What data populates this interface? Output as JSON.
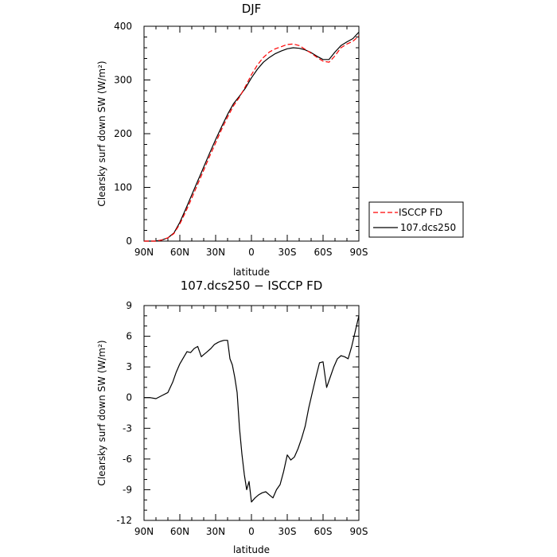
{
  "chart_data": [
    {
      "type": "line",
      "title": "DJF",
      "xlabel": "latitude",
      "ylabel": "Clearsky surf down SW (W/m²)",
      "x_tick_labels": [
        "90N",
        "60N",
        "30N",
        "0",
        "30S",
        "60S",
        "90S"
      ],
      "x_ticks": [
        -90,
        -60,
        -30,
        0,
        30,
        60,
        90
      ],
      "xlim": [
        -90,
        90
      ],
      "y_ticks": [
        0,
        100,
        200,
        300,
        400
      ],
      "ylim": [
        0,
        400
      ],
      "legend": {
        "placement": "outside-right"
      },
      "series": [
        {
          "name": "ISCCP FD",
          "color": "#ff0000",
          "dash": true,
          "x": [
            -90,
            -80,
            -75,
            -70,
            -65,
            -60,
            -55,
            -50,
            -45,
            -40,
            -35,
            -30,
            -25,
            -20,
            -15,
            -10,
            -5,
            0,
            5,
            10,
            15,
            20,
            25,
            30,
            35,
            40,
            45,
            50,
            55,
            60,
            65,
            70,
            75,
            80,
            85,
            90
          ],
          "y": [
            0,
            0,
            2,
            6,
            14,
            32,
            55,
            80,
            106,
            132,
            158,
            183,
            208,
            231,
            252,
            268,
            288,
            310,
            328,
            342,
            352,
            358,
            362,
            366,
            367,
            364,
            357,
            350,
            342,
            335,
            333,
            345,
            360,
            367,
            372,
            382
          ]
        },
        {
          "name": "107.dcs250",
          "color": "#000000",
          "dash": false,
          "x": [
            -90,
            -80,
            -75,
            -70,
            -65,
            -60,
            -55,
            -50,
            -45,
            -40,
            -35,
            -30,
            -25,
            -20,
            -15,
            -10,
            -5,
            0,
            5,
            10,
            15,
            20,
            25,
            30,
            35,
            40,
            45,
            50,
            55,
            60,
            65,
            70,
            75,
            80,
            85,
            90
          ],
          "y": [
            0,
            0,
            2,
            6,
            15,
            35,
            60,
            86,
            112,
            138,
            164,
            189,
            213,
            236,
            256,
            270,
            285,
            304,
            320,
            333,
            342,
            349,
            354,
            358,
            360,
            359,
            356,
            351,
            344,
            338,
            338,
            352,
            364,
            371,
            377,
            389
          ]
        }
      ]
    },
    {
      "type": "line",
      "title": "107.dcs250 − ISCCP FD",
      "xlabel": "latitude",
      "ylabel": "Clearsky surf down SW (W/m²)",
      "x_tick_labels": [
        "90N",
        "60N",
        "30N",
        "0",
        "30S",
        "60S",
        "90S"
      ],
      "x_ticks": [
        -90,
        -60,
        -30,
        0,
        30,
        60,
        90
      ],
      "xlim": [
        -90,
        90
      ],
      "y_ticks": [
        -12,
        -9,
        -6,
        -3,
        0,
        3,
        6,
        9
      ],
      "ylim": [
        -12,
        9
      ],
      "series": [
        {
          "color": "#000000",
          "x": [
            -90,
            -85,
            -80,
            -75,
            -70,
            -66,
            -63,
            -60,
            -57,
            -54,
            -51,
            -48,
            -45,
            -42,
            -40,
            -37,
            -34,
            -31,
            -28,
            -26,
            -23,
            -20,
            -18,
            -16,
            -14,
            -12,
            -10,
            -8,
            -6,
            -4,
            -2,
            0,
            3,
            6,
            9,
            12,
            15,
            18,
            21,
            24,
            27,
            30,
            33,
            36,
            39,
            42,
            45,
            48,
            51,
            54,
            57,
            60,
            63,
            66,
            69,
            72,
            75,
            78,
            81,
            84,
            87,
            90
          ],
          "y": [
            0,
            0,
            -0.1,
            0.2,
            0.5,
            1.5,
            2.5,
            3.3,
            3.9,
            4.5,
            4.4,
            4.8,
            5.0,
            4.0,
            4.2,
            4.5,
            4.8,
            5.2,
            5.4,
            5.5,
            5.6,
            5.6,
            3.8,
            3.2,
            2.0,
            0.5,
            -3.0,
            -5.5,
            -7.5,
            -9.0,
            -8.2,
            -10.2,
            -9.8,
            -9.5,
            -9.3,
            -9.2,
            -9.5,
            -9.8,
            -9.0,
            -8.5,
            -7.2,
            -5.6,
            -6.1,
            -5.8,
            -5.0,
            -4.0,
            -2.8,
            -1.0,
            0.5,
            2.0,
            3.4,
            3.5,
            1.0,
            2.0,
            3.0,
            3.8,
            4.1,
            4.0,
            3.8,
            5.0,
            6.5,
            8.0
          ]
        }
      ]
    }
  ]
}
